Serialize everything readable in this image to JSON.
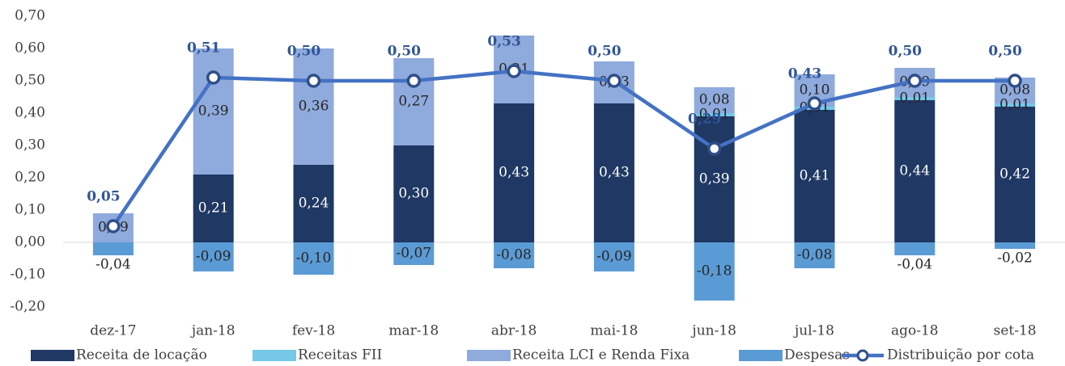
{
  "chart_data": {
    "type": "stacked_bar_line",
    "categories": [
      "dez-17",
      "jan-18",
      "fev-18",
      "mar-18",
      "abr-18",
      "mai-18",
      "jun-18",
      "jul-18",
      "ago-18",
      "set-18"
    ],
    "series": [
      {
        "name": "Receita de locação",
        "color": "#1f3864",
        "values": [
          null,
          0.21,
          0.24,
          0.3,
          0.43,
          0.43,
          0.39,
          0.41,
          0.44,
          0.42
        ],
        "value_labels": [
          null,
          "0,21",
          "0,24",
          "0,30",
          "0,43",
          "0,43",
          "0,39",
          "0,41",
          "0,44",
          "0,42"
        ]
      },
      {
        "name": "Receitas FII",
        "color": "#75c8e8",
        "values": [
          null,
          null,
          null,
          null,
          null,
          null,
          0.01,
          0.01,
          0.01,
          0.01
        ],
        "value_labels": [
          null,
          null,
          null,
          null,
          null,
          null,
          "0,01",
          "0,01",
          "0,01",
          "0,01"
        ]
      },
      {
        "name": "Receita LCI e Renda Fixa",
        "color": "#8faadc",
        "values": [
          0.09,
          0.39,
          0.36,
          0.27,
          0.21,
          0.13,
          0.08,
          0.1,
          0.09,
          0.08
        ],
        "value_labels": [
          "0,09",
          "0,39",
          "0,36",
          "0,27",
          "0,21",
          "0,13",
          "0,08",
          "0,10",
          "0,09",
          "0,08"
        ]
      },
      {
        "name": "Despesas",
        "color": "#5b9bd5",
        "values": [
          -0.04,
          -0.09,
          -0.1,
          -0.07,
          -0.08,
          -0.09,
          -0.18,
          -0.08,
          -0.04,
          -0.02
        ],
        "value_labels": [
          "-0,04",
          "-0,09",
          "-0,10",
          "-0,07",
          "-0,08",
          "-0,09",
          "-0,18",
          "-0,08",
          "-0,04",
          "-0,02"
        ]
      },
      {
        "name": "Distribuição por cota",
        "color": "#4472c4",
        "kind": "line",
        "values": [
          0.05,
          0.51,
          0.5,
          0.5,
          0.53,
          0.5,
          0.29,
          0.43,
          0.5,
          0.5
        ],
        "value_labels": [
          "0,05",
          "0,51",
          "0,50",
          "0,50",
          "0,53",
          "0,50",
          "0,29",
          "0,43",
          "0,50",
          "0,50"
        ]
      }
    ],
    "ylim": [
      -0.2,
      0.7
    ],
    "yticks": [
      {
        "value": 0.7,
        "label": "0,70"
      },
      {
        "value": 0.6,
        "label": "0,60"
      },
      {
        "value": 0.5,
        "label": "0,50"
      },
      {
        "value": 0.4,
        "label": "0,40"
      },
      {
        "value": 0.3,
        "label": "0,30"
      },
      {
        "value": 0.2,
        "label": "0,20"
      },
      {
        "value": 0.1,
        "label": "0,10"
      },
      {
        "value": 0,
        "label": "0,00"
      },
      {
        "value": -0.1,
        "label": "-0,10"
      },
      {
        "value": -0.2,
        "label": "-0,20"
      }
    ],
    "grid": false,
    "legend": "bottom"
  }
}
